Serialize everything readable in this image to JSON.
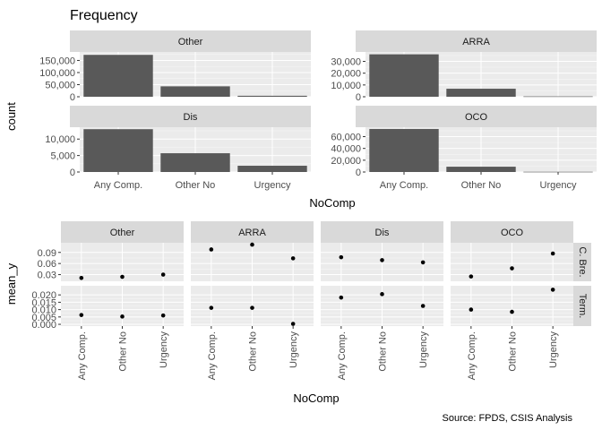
{
  "chart_data": [
    {
      "type": "bar",
      "title": "Frequency",
      "xlabel": "NoComp",
      "ylabel": "count",
      "categories": [
        "Any Comp.",
        "Other No",
        "Urgency"
      ],
      "grid": true,
      "panels": [
        {
          "name": "Other",
          "values": [
            173000,
            43000,
            4000
          ],
          "ylim": [
            0,
            185000
          ],
          "yticks": [
            0,
            50000,
            100000,
            150000
          ],
          "ytick_labels": [
            "0",
            "50,000",
            "100,000",
            "150,000"
          ]
        },
        {
          "name": "ARRA",
          "values": [
            36000,
            6800,
            300
          ],
          "ylim": [
            0,
            38000
          ],
          "yticks": [
            0,
            10000,
            20000,
            30000
          ],
          "ytick_labels": [
            "0",
            "10,000",
            "20,000",
            "30,000"
          ]
        },
        {
          "name": "Dis",
          "values": [
            13000,
            5700,
            1900
          ],
          "ylim": [
            0,
            13600
          ],
          "yticks": [
            0,
            5000,
            10000
          ],
          "ytick_labels": [
            "0",
            "5,000",
            "10,000"
          ]
        },
        {
          "name": "OCO",
          "values": [
            73000,
            9000,
            400
          ],
          "ylim": [
            0,
            76000
          ],
          "yticks": [
            0,
            20000,
            40000,
            60000
          ],
          "ytick_labels": [
            "0",
            "20,000",
            "40,000",
            "60,000"
          ]
        }
      ]
    },
    {
      "type": "scatter",
      "xlabel": "NoComp",
      "ylabel": "mean_y",
      "categories": [
        "Any Comp.",
        "Other No",
        "Urgency"
      ],
      "columns": [
        "Other",
        "ARRA",
        "Dis",
        "OCO"
      ],
      "grid": true,
      "rows": [
        {
          "name": "C. Bre.",
          "ylim": [
            0.012,
            0.116
          ],
          "yticks": [
            0.03,
            0.06,
            0.09
          ],
          "ytick_labels": [
            "0.03",
            "0.06",
            "0.09"
          ],
          "values": {
            "Other": [
              0.021,
              0.024,
              0.03
            ],
            "ARRA": [
              0.098,
              0.111,
              0.074
            ],
            "Dis": [
              0.077,
              0.069,
              0.063
            ],
            "OCO": [
              0.025,
              0.047,
              0.087
            ]
          }
        },
        {
          "name": "Term.",
          "ylim": [
            -0.0012,
            0.0262
          ],
          "yticks": [
            0.0,
            0.005,
            0.01,
            0.015,
            0.02
          ],
          "ytick_labels": [
            "0.000",
            "0.005",
            "0.010",
            "0.015",
            "0.020"
          ],
          "values": {
            "Other": [
              0.0063,
              0.0053,
              0.006
            ],
            "ARRA": [
              0.0112,
              0.0112,
              0.0003
            ],
            "Dis": [
              0.0182,
              0.0205,
              0.0125
            ],
            "OCO": [
              0.01,
              0.0085,
              0.0235
            ]
          }
        }
      ]
    }
  ],
  "caption": "Source: FPDS, CSIS Analysis",
  "colors": {
    "bar_fill": "#595959",
    "point": "#000000",
    "panel_bg": "#ebebeb",
    "strip_bg": "#d9d9d9",
    "grid_major": "#ffffff",
    "grid_minor": "#f5f5f5"
  }
}
